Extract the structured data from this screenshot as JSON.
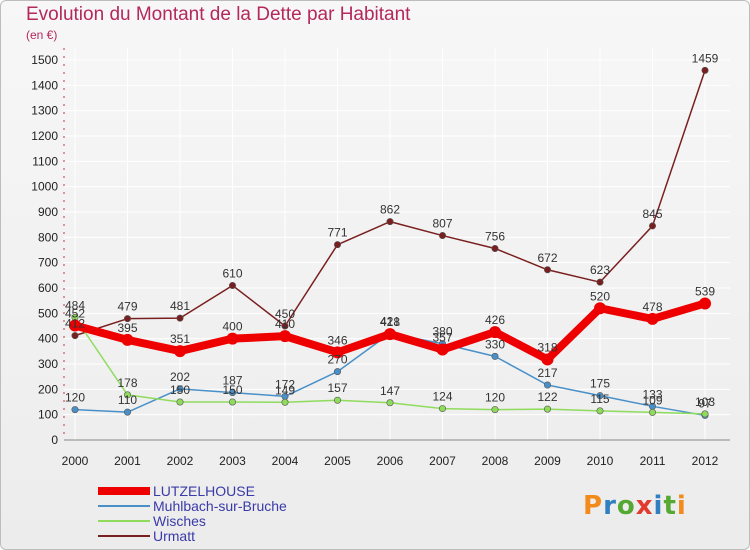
{
  "title": "Evolution du Montant de la Dette par Habitant",
  "unit": "(en €)",
  "logo": {
    "text": "Proxiti",
    "letter_colors": [
      "#f28a1c",
      "#2f7fc1",
      "#55a832",
      "#e23a2e",
      "#2f7fc1",
      "#55a832",
      "#f28a1c"
    ]
  },
  "chart_data": {
    "type": "line",
    "title": "Evolution du Montant de la Dette par Habitant",
    "ylabel": "(en €)",
    "xlabel": "",
    "ylim": [
      0,
      1500
    ],
    "yticks": [
      0,
      100,
      200,
      300,
      400,
      500,
      600,
      700,
      800,
      900,
      1000,
      1100,
      1200,
      1300,
      1400,
      1500
    ],
    "grid": true,
    "legend_position": "bottom-left",
    "categories": [
      "2000",
      "2001",
      "2002",
      "2003",
      "2004",
      "2005",
      "2006",
      "2007",
      "2008",
      "2009",
      "2010",
      "2011",
      "2012"
    ],
    "series": [
      {
        "name": "Urmatt",
        "color": "#7a1f1f",
        "values": [
          412,
          479,
          481,
          610,
          450,
          771,
          862,
          807,
          756,
          672,
          623,
          845,
          1459
        ]
      },
      {
        "name": "Muhlbach-sur-Bruche",
        "color": "#4a90c8",
        "values": [
          120,
          110,
          202,
          187,
          172,
          270,
          421,
          380,
          330,
          217,
          175,
          133,
          97
        ]
      },
      {
        "name": "Wisches",
        "color": "#8fdc5c",
        "values": [
          484,
          178,
          150,
          150,
          149,
          157,
          147,
          124,
          120,
          122,
          115,
          109,
          103
        ]
      },
      {
        "name": "LUTZELHOUSE",
        "color": "#ee0000",
        "values": [
          452,
          395,
          351,
          400,
          410,
          346,
          418,
          357,
          426,
          318,
          520,
          478,
          539
        ]
      }
    ],
    "legend": [
      {
        "name": "LUTZELHOUSE",
        "color": "#ee0000"
      },
      {
        "name": "Muhlbach-sur-Bruche",
        "color": "#4a90c8"
      },
      {
        "name": "Wisches",
        "color": "#8fdc5c"
      },
      {
        "name": "Urmatt",
        "color": "#7a1f1f"
      }
    ]
  }
}
